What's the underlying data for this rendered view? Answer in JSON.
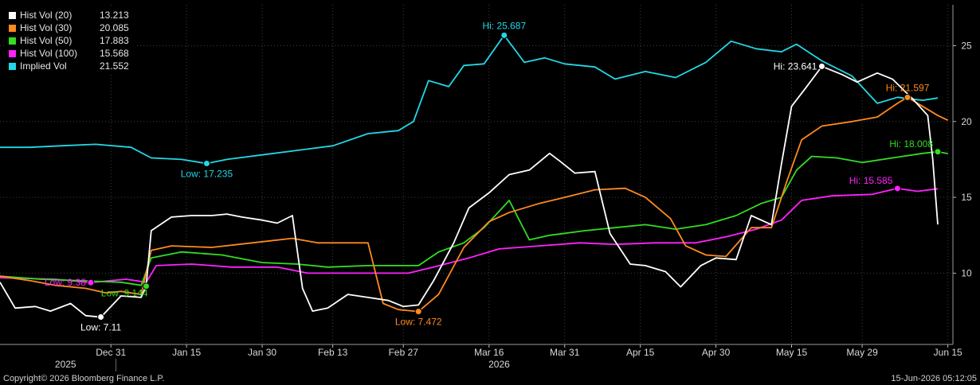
{
  "chart_data": {
    "type": "line",
    "y_range": [
      5.3,
      27.7
    ],
    "x_range": [
      "2025-12-09",
      "2026-06-16"
    ],
    "y_ticks": [
      "10",
      "15",
      "20",
      "25"
    ],
    "x_ticks": [
      {
        "label": "Dec 31",
        "date": "2025-12-31"
      },
      {
        "label": "Jan 15",
        "date": "2026-01-15"
      },
      {
        "label": "Jan 30",
        "date": "2026-01-30"
      },
      {
        "label": "Feb 13",
        "date": "2026-02-13"
      },
      {
        "label": "Feb 27",
        "date": "2026-02-27"
      },
      {
        "label": "Mar 16",
        "date": "2026-03-16"
      },
      {
        "label": "Mar 31",
        "date": "2026-03-31"
      },
      {
        "label": "Apr 15",
        "date": "2026-04-15"
      },
      {
        "label": "Apr 30",
        "date": "2026-04-30"
      },
      {
        "label": "May 15",
        "date": "2026-05-15"
      },
      {
        "label": "May 29",
        "date": "2026-05-29"
      },
      {
        "label": "Jun 15",
        "date": "2026-06-15"
      }
    ],
    "year_labels": [
      {
        "label": "2025",
        "date": "2025-12-22"
      },
      {
        "label": "2026",
        "date": "2026-03-18"
      }
    ],
    "series": [
      {
        "name": "Hist Vol (20)",
        "value": "13.213",
        "color": "#ffffff",
        "points": [
          [
            "2025-12-09",
            9.4
          ],
          [
            "2025-12-12",
            7.7
          ],
          [
            "2025-12-16",
            7.8
          ],
          [
            "2025-12-19",
            7.5
          ],
          [
            "2025-12-23",
            8.0
          ],
          [
            "2025-12-26",
            7.2
          ],
          [
            "2025-12-29",
            7.1
          ],
          [
            "2026-01-02",
            8.5
          ],
          [
            "2026-01-06",
            8.4
          ],
          [
            "2026-01-07",
            9.2
          ],
          [
            "2026-01-08",
            12.8
          ],
          [
            "2026-01-12",
            13.7
          ],
          [
            "2026-01-16",
            13.8
          ],
          [
            "2026-01-20",
            13.8
          ],
          [
            "2026-01-23",
            13.9
          ],
          [
            "2026-01-26",
            13.7
          ],
          [
            "2026-01-30",
            13.5
          ],
          [
            "2026-02-02",
            13.3
          ],
          [
            "2026-02-05",
            13.8
          ],
          [
            "2026-02-07",
            9.0
          ],
          [
            "2026-02-09",
            7.5
          ],
          [
            "2026-02-12",
            7.7
          ],
          [
            "2026-02-16",
            8.6
          ],
          [
            "2026-02-20",
            8.4
          ],
          [
            "2026-02-24",
            8.2
          ],
          [
            "2026-02-27",
            7.8
          ],
          [
            "2026-03-02",
            7.9
          ],
          [
            "2026-03-05",
            9.5
          ],
          [
            "2026-03-09",
            12.0
          ],
          [
            "2026-03-12",
            14.3
          ],
          [
            "2026-03-16",
            15.3
          ],
          [
            "2026-03-20",
            16.5
          ],
          [
            "2026-03-24",
            16.8
          ],
          [
            "2026-03-28",
            17.9
          ],
          [
            "2026-03-30",
            17.4
          ],
          [
            "2026-04-02",
            16.6
          ],
          [
            "2026-04-06",
            16.7
          ],
          [
            "2026-04-09",
            12.6
          ],
          [
            "2026-04-13",
            10.6
          ],
          [
            "2026-04-16",
            10.5
          ],
          [
            "2026-04-20",
            10.1
          ],
          [
            "2026-04-23",
            9.1
          ],
          [
            "2026-04-27",
            10.5
          ],
          [
            "2026-04-30",
            11.0
          ],
          [
            "2026-05-04",
            10.9
          ],
          [
            "2026-05-07",
            13.8
          ],
          [
            "2026-05-11",
            13.2
          ],
          [
            "2026-05-13",
            17.2
          ],
          [
            "2026-05-15",
            21.0
          ],
          [
            "2026-05-18",
            22.3
          ],
          [
            "2026-05-21",
            23.641
          ],
          [
            "2026-05-25",
            23.1
          ],
          [
            "2026-05-28",
            22.6
          ],
          [
            "2026-06-01",
            23.2
          ],
          [
            "2026-06-04",
            22.8
          ],
          [
            "2026-06-08",
            21.5
          ],
          [
            "2026-06-11",
            20.4
          ],
          [
            "2026-06-12",
            17.5
          ],
          [
            "2026-06-13",
            13.213
          ]
        ]
      },
      {
        "name": "Hist Vol (30)",
        "value": "20.085",
        "color": "#ff8a1f",
        "points": [
          [
            "2025-12-09",
            9.8
          ],
          [
            "2025-12-15",
            9.5
          ],
          [
            "2025-12-20",
            9.2
          ],
          [
            "2025-12-26",
            9.0
          ],
          [
            "2025-12-30",
            8.7
          ],
          [
            "2026-01-02",
            8.8
          ],
          [
            "2026-01-06",
            8.6
          ],
          [
            "2026-01-08",
            11.5
          ],
          [
            "2026-01-12",
            11.8
          ],
          [
            "2026-01-20",
            11.7
          ],
          [
            "2026-01-28",
            12.0
          ],
          [
            "2026-02-05",
            12.3
          ],
          [
            "2026-02-10",
            12.0
          ],
          [
            "2026-02-20",
            12.0
          ],
          [
            "2026-02-23",
            8.0
          ],
          [
            "2026-02-26",
            7.6
          ],
          [
            "2026-03-02",
            7.472
          ],
          [
            "2026-03-06",
            8.6
          ],
          [
            "2026-03-11",
            11.7
          ],
          [
            "2026-03-16",
            13.4
          ],
          [
            "2026-03-20",
            14.0
          ],
          [
            "2026-03-26",
            14.6
          ],
          [
            "2026-03-31",
            15.0
          ],
          [
            "2026-04-06",
            15.5
          ],
          [
            "2026-04-12",
            15.6
          ],
          [
            "2026-04-16",
            15.0
          ],
          [
            "2026-04-21",
            13.6
          ],
          [
            "2026-04-24",
            11.8
          ],
          [
            "2026-04-28",
            11.2
          ],
          [
            "2026-05-02",
            11.1
          ],
          [
            "2026-05-07",
            13.0
          ],
          [
            "2026-05-11",
            13.0
          ],
          [
            "2026-05-14",
            16.0
          ],
          [
            "2026-05-17",
            18.8
          ],
          [
            "2026-05-21",
            19.7
          ],
          [
            "2026-05-27",
            20.0
          ],
          [
            "2026-06-01",
            20.3
          ],
          [
            "2026-06-05",
            21.2
          ],
          [
            "2026-06-07",
            21.597
          ],
          [
            "2026-06-10",
            21.0
          ],
          [
            "2026-06-13",
            20.4
          ],
          [
            "2026-06-15",
            20.085
          ]
        ]
      },
      {
        "name": "Hist Vol (50)",
        "value": "17.883",
        "color": "#33dd22",
        "points": [
          [
            "2025-12-09",
            9.8
          ],
          [
            "2025-12-17",
            9.6
          ],
          [
            "2025-12-25",
            9.5
          ],
          [
            "2026-01-02",
            9.4
          ],
          [
            "2026-01-06",
            9.2
          ],
          [
            "2026-01-08",
            11.0
          ],
          [
            "2026-01-14",
            11.4
          ],
          [
            "2026-01-22",
            11.2
          ],
          [
            "2026-01-30",
            10.7
          ],
          [
            "2026-02-06",
            10.6
          ],
          [
            "2026-02-12",
            10.4
          ],
          [
            "2026-02-20",
            10.5
          ],
          [
            "2026-03-02",
            10.5
          ],
          [
            "2026-03-06",
            11.4
          ],
          [
            "2026-03-11",
            12.0
          ],
          [
            "2026-03-15",
            13.0
          ],
          [
            "2026-03-20",
            14.8
          ],
          [
            "2026-03-24",
            12.2
          ],
          [
            "2026-03-28",
            12.5
          ],
          [
            "2026-04-04",
            12.8
          ],
          [
            "2026-04-10",
            13.0
          ],
          [
            "2026-04-16",
            13.2
          ],
          [
            "2026-04-22",
            12.9
          ],
          [
            "2026-04-28",
            13.2
          ],
          [
            "2026-05-04",
            13.8
          ],
          [
            "2026-05-09",
            14.6
          ],
          [
            "2026-05-13",
            15.0
          ],
          [
            "2026-05-16",
            16.8
          ],
          [
            "2026-05-19",
            17.7
          ],
          [
            "2026-05-24",
            17.6
          ],
          [
            "2026-05-29",
            17.3
          ],
          [
            "2026-06-04",
            17.6
          ],
          [
            "2026-06-10",
            17.9
          ],
          [
            "2026-06-13",
            18.008
          ],
          [
            "2026-06-15",
            17.883
          ]
        ]
      },
      {
        "name": "Hist Vol (100)",
        "value": "15.568",
        "color": "#ff22ff",
        "points": [
          [
            "2025-12-09",
            9.7
          ],
          [
            "2025-12-20",
            9.6
          ],
          [
            "2025-12-27",
            9.38
          ],
          [
            "2026-01-03",
            9.6
          ],
          [
            "2026-01-07",
            9.4
          ],
          [
            "2026-01-09",
            10.5
          ],
          [
            "2026-01-16",
            10.6
          ],
          [
            "2026-01-24",
            10.4
          ],
          [
            "2026-02-02",
            10.4
          ],
          [
            "2026-02-08",
            10.0
          ],
          [
            "2026-02-18",
            10.0
          ],
          [
            "2026-02-28",
            10.0
          ],
          [
            "2026-03-05",
            10.4
          ],
          [
            "2026-03-12",
            11.0
          ],
          [
            "2026-03-18",
            11.6
          ],
          [
            "2026-03-26",
            11.8
          ],
          [
            "2026-04-03",
            12.0
          ],
          [
            "2026-04-10",
            11.9
          ],
          [
            "2026-04-18",
            12.0
          ],
          [
            "2026-04-26",
            12.0
          ],
          [
            "2026-05-02",
            12.4
          ],
          [
            "2026-05-08",
            12.9
          ],
          [
            "2026-05-13",
            13.5
          ],
          [
            "2026-05-17",
            14.8
          ],
          [
            "2026-05-23",
            15.1
          ],
          [
            "2026-05-31",
            15.2
          ],
          [
            "2026-06-05",
            15.585
          ],
          [
            "2026-06-09",
            15.4
          ],
          [
            "2026-06-13",
            15.568
          ]
        ]
      },
      {
        "name": "Implied Vol",
        "value": "21.552",
        "color": "#22d8e6",
        "points": [
          [
            "2025-12-09",
            18.3
          ],
          [
            "2025-12-15",
            18.3
          ],
          [
            "2025-12-21",
            18.4
          ],
          [
            "2025-12-28",
            18.5
          ],
          [
            "2026-01-04",
            18.3
          ],
          [
            "2026-01-08",
            17.6
          ],
          [
            "2026-01-14",
            17.5
          ],
          [
            "2026-01-19",
            17.235
          ],
          [
            "2026-01-23",
            17.5
          ],
          [
            "2026-01-30",
            17.8
          ],
          [
            "2026-02-06",
            18.1
          ],
          [
            "2026-02-13",
            18.4
          ],
          [
            "2026-02-20",
            19.2
          ],
          [
            "2026-02-26",
            19.4
          ],
          [
            "2026-03-01",
            20.0
          ],
          [
            "2026-03-04",
            22.7
          ],
          [
            "2026-03-08",
            22.3
          ],
          [
            "2026-03-11",
            23.7
          ],
          [
            "2026-03-15",
            23.8
          ],
          [
            "2026-03-19",
            25.687
          ],
          [
            "2026-03-23",
            23.9
          ],
          [
            "2026-03-27",
            24.2
          ],
          [
            "2026-03-31",
            23.8
          ],
          [
            "2026-04-06",
            23.6
          ],
          [
            "2026-04-10",
            22.8
          ],
          [
            "2026-04-16",
            23.3
          ],
          [
            "2026-04-22",
            22.9
          ],
          [
            "2026-04-28",
            23.9
          ],
          [
            "2026-05-03",
            25.3
          ],
          [
            "2026-05-08",
            24.8
          ],
          [
            "2026-05-13",
            24.6
          ],
          [
            "2026-05-16",
            25.1
          ],
          [
            "2026-05-21",
            24.0
          ],
          [
            "2026-05-27",
            23.0
          ],
          [
            "2026-06-01",
            21.2
          ],
          [
            "2026-06-05",
            21.6
          ],
          [
            "2026-06-10",
            21.4
          ],
          [
            "2026-06-13",
            21.552
          ]
        ]
      }
    ],
    "annotations": [
      {
        "series": 0,
        "text": "Low: 7.11",
        "date": "2025-12-29",
        "value": 7.11,
        "placement": "below"
      },
      {
        "series": 0,
        "text": "Hi: 23.641",
        "date": "2026-05-21",
        "value": 23.641,
        "placement": "left"
      },
      {
        "series": 1,
        "text": "Low: 7.472",
        "date": "2026-03-02",
        "value": 7.472,
        "placement": "below"
      },
      {
        "series": 1,
        "text": "Hi: 21.597",
        "date": "2026-06-07",
        "value": 21.597,
        "placement": "above"
      },
      {
        "series": 2,
        "text": "Low: 9.144",
        "date": "2026-01-07",
        "value": 9.144,
        "placement": "below-left"
      },
      {
        "series": 2,
        "text": "Hi: 18.008",
        "date": "2026-06-13",
        "value": 18.008,
        "placement": "above-left"
      },
      {
        "series": 3,
        "text": "Low: 9.38",
        "date": "2025-12-27",
        "value": 9.38,
        "placement": "left"
      },
      {
        "series": 3,
        "text": "Hi: 15.585",
        "date": "2026-06-05",
        "value": 15.585,
        "placement": "above-left"
      },
      {
        "series": 4,
        "text": "Low: 17.235",
        "date": "2026-01-19",
        "value": 17.235,
        "placement": "below"
      },
      {
        "series": 4,
        "text": "Hi: 25.687",
        "date": "2026-03-19",
        "value": 25.687,
        "placement": "above"
      }
    ]
  },
  "footer": {
    "copyright": "Copyright© 2026 Bloomberg Finance L.P.",
    "timestamp": "15-Jun-2026 05:12:05"
  }
}
